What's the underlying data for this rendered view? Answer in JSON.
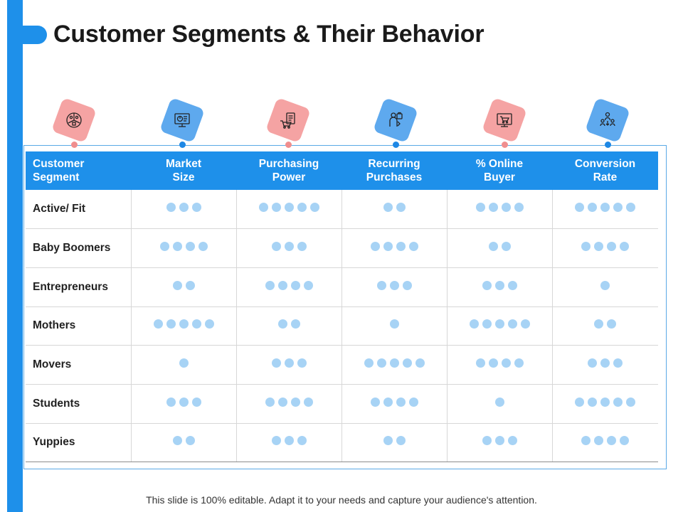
{
  "slide": {
    "title": "Customer Segments & Their Behavior",
    "footer": "This slide is 100% editable. Adapt it to your needs and capture your audience's attention.",
    "colors": {
      "accent_blue": "#1E90EA",
      "pink": "#F5A3A3",
      "light_blue": "#5EA9EE",
      "dot": "#A7D3F5"
    }
  },
  "icons": [
    {
      "name": "segment-pie-icon",
      "color": "pink"
    },
    {
      "name": "market-monitor-icon",
      "color": "blue"
    },
    {
      "name": "purchase-receipt-cart-icon",
      "color": "pink"
    },
    {
      "name": "recurring-shopper-icon",
      "color": "blue"
    },
    {
      "name": "online-shop-monitor-icon",
      "color": "pink"
    },
    {
      "name": "conversion-people-icon",
      "color": "blue"
    }
  ],
  "table": {
    "headers": [
      {
        "line1": "Customer",
        "line2": "Segment"
      },
      {
        "line1": "Market",
        "line2": "Size"
      },
      {
        "line1": "Purchasing",
        "line2": "Power"
      },
      {
        "line1": "Recurring",
        "line2": "Purchases"
      },
      {
        "line1": "% Online",
        "line2": "Buyer"
      },
      {
        "line1": "Conversion",
        "line2": "Rate"
      }
    ],
    "rows": [
      {
        "segment": "Active/ Fit",
        "ratings": [
          3,
          5,
          2,
          4,
          5
        ]
      },
      {
        "segment": "Baby Boomers",
        "ratings": [
          4,
          3,
          4,
          2,
          4
        ]
      },
      {
        "segment": "Entrepreneurs",
        "ratings": [
          2,
          4,
          3,
          3,
          1
        ]
      },
      {
        "segment": "Mothers",
        "ratings": [
          5,
          2,
          1,
          5,
          2
        ]
      },
      {
        "segment": "Movers",
        "ratings": [
          1,
          3,
          5,
          4,
          3
        ]
      },
      {
        "segment": "Students",
        "ratings": [
          3,
          4,
          4,
          1,
          5
        ]
      },
      {
        "segment": "Yuppies",
        "ratings": [
          2,
          3,
          2,
          3,
          4
        ]
      }
    ]
  }
}
